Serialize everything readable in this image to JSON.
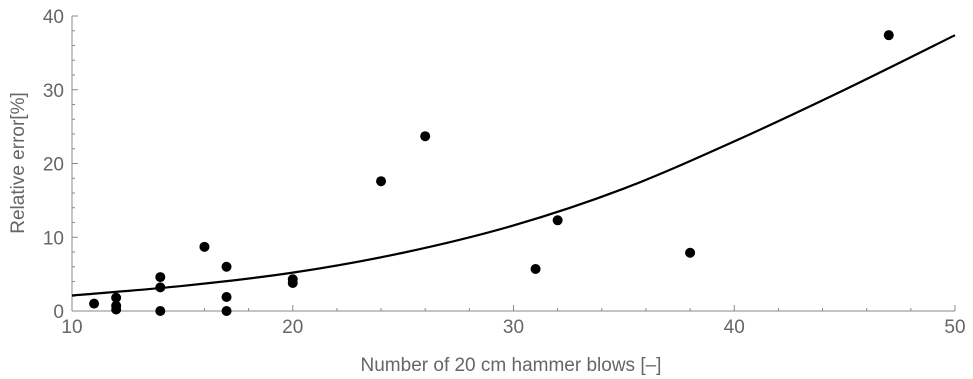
{
  "chart_data": {
    "type": "scatter",
    "xlabel": "Number  of 20 cm  hammer  blows [–]",
    "ylabel": "Relative error[%]",
    "xlim": [
      10,
      50
    ],
    "ylim": [
      0,
      40
    ],
    "x_ticks": [
      10,
      20,
      30,
      40,
      50
    ],
    "y_ticks": [
      0,
      10,
      20,
      30,
      40
    ],
    "grid": false,
    "series": [
      {
        "type": "scatter",
        "color": "#000000",
        "points": [
          {
            "x": 11,
            "y": 1.0
          },
          {
            "x": 12,
            "y": 1.8
          },
          {
            "x": 12,
            "y": 0.7
          },
          {
            "x": 12,
            "y": 0.2
          },
          {
            "x": 14,
            "y": 4.6
          },
          {
            "x": 14,
            "y": 3.2
          },
          {
            "x": 14,
            "y": 0.0
          },
          {
            "x": 16,
            "y": 8.7
          },
          {
            "x": 17,
            "y": 6.0
          },
          {
            "x": 17,
            "y": 1.9
          },
          {
            "x": 17,
            "y": 0.0
          },
          {
            "x": 20,
            "y": 4.3
          },
          {
            "x": 20,
            "y": 3.8
          },
          {
            "x": 24,
            "y": 17.6
          },
          {
            "x": 26,
            "y": 23.7
          },
          {
            "x": 31,
            "y": 5.7
          },
          {
            "x": 32,
            "y": 12.3
          },
          {
            "x": 38,
            "y": 7.9
          },
          {
            "x": 47,
            "y": 37.4
          }
        ]
      },
      {
        "type": "line",
        "color": "#000000",
        "points": [
          {
            "x": 10,
            "y": 2.1
          },
          {
            "x": 15,
            "y": 3.4
          },
          {
            "x": 20,
            "y": 5.2
          },
          {
            "x": 25,
            "y": 7.9
          },
          {
            "x": 30,
            "y": 11.6
          },
          {
            "x": 35,
            "y": 16.6
          },
          {
            "x": 40,
            "y": 23.0
          },
          {
            "x": 45,
            "y": 30.0
          },
          {
            "x": 50,
            "y": 37.4
          }
        ]
      }
    ]
  }
}
